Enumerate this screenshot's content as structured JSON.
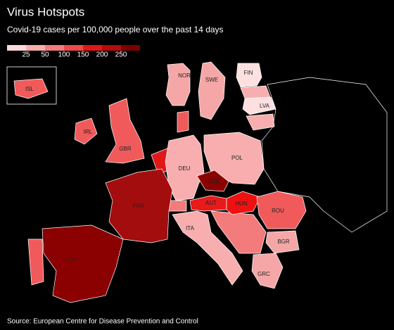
{
  "title": "Virus Hotspots",
  "subtitle": "Covid-19 cases per 100,000 people over the past 14 days",
  "legend": {
    "colors": [
      "#fcd9d9",
      "#f8aeae",
      "#f37b7b",
      "#ec4a4a",
      "#e01818",
      "#b40c0c",
      "#7a0000"
    ],
    "ticks": [
      25,
      50,
      100,
      150,
      200,
      250
    ]
  },
  "countries": [
    {
      "label": "NOR",
      "color": "#f5a7a7"
    },
    {
      "label": "SWE",
      "color": "#f5a7a7"
    },
    {
      "label": "FIN",
      "color": "#fde0e0"
    },
    {
      "label": "LVA",
      "color": "#fde0e0"
    },
    {
      "label": "ISL",
      "color": "#f05a5a"
    },
    {
      "label": "IRL",
      "color": "#f05a5a"
    },
    {
      "label": "GBR",
      "color": "#f05a5a"
    },
    {
      "label": "DEU",
      "color": "#f8aeae"
    },
    {
      "label": "POL",
      "color": "#f8aeae"
    },
    {
      "label": "CZE",
      "color": "#8b0000"
    },
    {
      "label": "FRA",
      "color": "#a30d0d"
    },
    {
      "label": "AUT",
      "color": "#e81a1a"
    },
    {
      "label": "HUN",
      "color": "#ee1111"
    },
    {
      "label": "ROU",
      "color": "#f05a5a"
    },
    {
      "label": "ITA",
      "color": "#f8aeae"
    },
    {
      "label": "BGR",
      "color": "#f5a7a7"
    },
    {
      "label": "GRC",
      "color": "#f5a7a7"
    },
    {
      "label": "ESP",
      "color": "#8b0000"
    }
  ],
  "source": "Source: European Centre for Disease Prevention and Control"
}
